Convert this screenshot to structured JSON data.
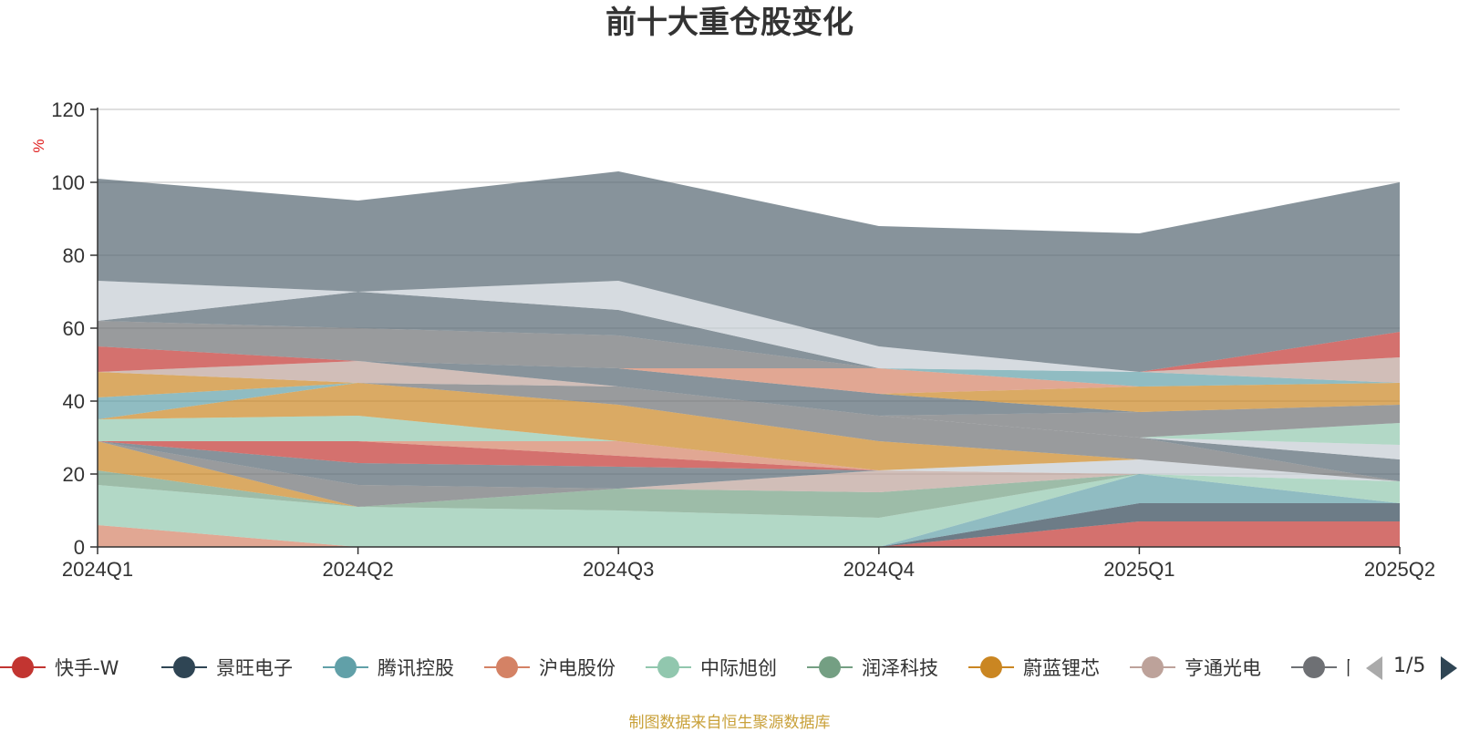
{
  "chart_data": {
    "type": "area",
    "title": "前十大重仓股变化",
    "ylabel": "%",
    "ylim": [
      0,
      120
    ],
    "yticks": [
      0,
      20,
      40,
      60,
      80,
      100,
      120
    ],
    "categories": [
      "2024Q1",
      "2024Q2",
      "2024Q3",
      "2024Q4",
      "2025Q1",
      "2025Q2"
    ],
    "source_note": "制图数据来自恒生聚源数据库",
    "legend_placement": "bottom",
    "legend_page": "1/5",
    "series": [
      {
        "name": "快手-W",
        "color": "#c23531",
        "values": [
          0,
          0,
          0,
          0,
          7,
          7
        ]
      },
      {
        "name": "景旺电子",
        "color": "#2f4554",
        "values": [
          0,
          0,
          0,
          0,
          5,
          5
        ]
      },
      {
        "name": "腾讯控股",
        "color": "#61a0a8",
        "values": [
          0,
          0,
          0,
          0,
          8,
          0
        ]
      },
      {
        "name": "沪电股份",
        "color": "#d48265",
        "values": [
          6,
          0,
          0,
          0,
          0,
          0
        ]
      },
      {
        "name": "中际旭创",
        "color": "#91c7ae",
        "values": [
          11,
          11,
          10,
          8,
          0,
          6
        ]
      },
      {
        "name": "润泽科技",
        "color": "#749f83",
        "values": [
          4,
          0,
          6,
          7,
          0,
          0
        ]
      },
      {
        "name": "蔚蓝锂芯",
        "color": "#ca8622",
        "values": [
          8,
          0,
          0,
          0,
          0,
          0
        ]
      },
      {
        "name": "亨通光电",
        "color": "#bda29a",
        "values": [
          0,
          0,
          0,
          6,
          0,
          0
        ]
      },
      {
        "name": "阳光电源",
        "color": "#6e7074",
        "values": [
          0,
          6,
          0,
          0,
          0,
          0
        ]
      },
      {
        "name": "",
        "color": "#546570",
        "values": [
          0,
          6,
          6,
          0,
          0,
          0
        ]
      },
      {
        "name": "",
        "color": "#c4ccd3",
        "values": [
          0,
          0,
          0,
          0,
          4,
          0
        ]
      },
      {
        "name": "",
        "color": "#c23531",
        "values": [
          0,
          6,
          3,
          0,
          0,
          0
        ]
      },
      {
        "name": "",
        "color": "#d48265",
        "values": [
          0,
          0,
          4,
          0,
          0,
          0
        ]
      },
      {
        "name": "",
        "color": "#91c7ae",
        "values": [
          6,
          7,
          0,
          0,
          0,
          0
        ]
      },
      {
        "name": "",
        "color": "#ca8622",
        "values": [
          0,
          9,
          10,
          8,
          0,
          0
        ]
      },
      {
        "name": "",
        "color": "#6e7074",
        "values": [
          0,
          0,
          5,
          7,
          6,
          0
        ]
      },
      {
        "name": "",
        "color": "#546570",
        "values": [
          0,
          0,
          0,
          0,
          0,
          6
        ]
      },
      {
        "name": "",
        "color": "#c4ccd3",
        "values": [
          0,
          0,
          0,
          0,
          0,
          4
        ]
      },
      {
        "name": "",
        "color": "#91c7ae",
        "values": [
          0,
          0,
          0,
          0,
          0,
          6
        ]
      },
      {
        "name": "",
        "color": "#6e7074",
        "values": [
          0,
          0,
          0,
          0,
          7,
          5
        ]
      },
      {
        "name": "",
        "color": "#61a0a8",
        "values": [
          6,
          0,
          0,
          0,
          0,
          0
        ]
      },
      {
        "name": "",
        "color": "#ca8622",
        "values": [
          7,
          0,
          0,
          0,
          0,
          0
        ]
      },
      {
        "name": "",
        "color": "#bda29a",
        "values": [
          0,
          6,
          0,
          0,
          0,
          0
        ]
      },
      {
        "name": "",
        "color": "#546570",
        "values": [
          0,
          0,
          5,
          6,
          0,
          0
        ]
      },
      {
        "name": "",
        "color": "#ca8622",
        "values": [
          0,
          0,
          0,
          0,
          7,
          6
        ]
      },
      {
        "name": "",
        "color": "#d48265",
        "values": [
          0,
          0,
          0,
          7,
          0,
          0
        ]
      },
      {
        "name": "",
        "color": "#61a0a8",
        "values": [
          0,
          0,
          0,
          0,
          4,
          0
        ]
      },
      {
        "name": "",
        "color": "#bda29a",
        "values": [
          0,
          0,
          0,
          0,
          0,
          7
        ]
      },
      {
        "name": "",
        "color": "#c23531",
        "values": [
          7,
          0,
          0,
          0,
          0,
          7
        ]
      },
      {
        "name": "",
        "color": "#6e7074",
        "values": [
          7,
          9,
          9,
          0,
          0,
          0
        ]
      },
      {
        "name": "",
        "color": "#546570",
        "values": [
          0,
          10,
          7,
          0,
          0,
          0
        ]
      },
      {
        "name": "",
        "color": "#c4ccd3",
        "values": [
          11,
          0,
          8,
          6,
          0,
          0
        ]
      },
      {
        "name": "",
        "color": "#546570",
        "values": [
          28,
          25,
          30,
          33,
          38,
          41
        ]
      }
    ]
  }
}
